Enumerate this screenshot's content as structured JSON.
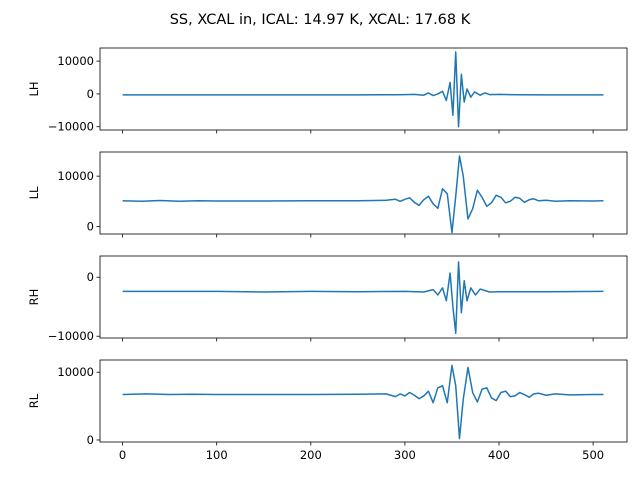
{
  "figure": {
    "title": "SS, XCAL in, ICAL: 14.97 K, XCAL: 17.68 K"
  },
  "colors": {
    "line": "#1f77b4",
    "axes": "#000000",
    "background": "#ffffff"
  },
  "chart_data": [
    {
      "type": "line",
      "ylabel": "LH",
      "xlim": [
        -24,
        536
      ],
      "ylim": [
        -11000,
        14000
      ],
      "xticks": [
        0,
        100,
        200,
        300,
        400,
        500
      ],
      "xtick_labels": [
        "",
        "",
        "",
        "",
        "",
        ""
      ],
      "yticks": [
        -10000,
        0,
        10000
      ],
      "ytick_labels": [
        "−10000",
        "0",
        "10000"
      ],
      "series": [
        {
          "x": [
            0,
            50,
            100,
            150,
            200,
            250,
            290,
            300,
            310,
            320,
            325,
            330,
            335,
            340,
            344,
            348,
            351,
            354,
            357,
            360,
            363,
            366,
            370,
            374,
            380,
            385,
            390,
            400,
            420,
            450,
            500,
            511
          ],
          "values": [
            -300,
            -300,
            -300,
            -300,
            -300,
            -300,
            -250,
            -200,
            -150,
            -400,
            300,
            -500,
            0,
            800,
            -2000,
            3500,
            -6500,
            12800,
            -10000,
            6000,
            -2500,
            1500,
            -1000,
            600,
            -400,
            300,
            -200,
            -150,
            -250,
            -300,
            -300,
            -300
          ]
        }
      ]
    },
    {
      "type": "line",
      "ylabel": "LL",
      "xlim": [
        -24,
        536
      ],
      "ylim": [
        -1500,
        14800
      ],
      "xticks": [
        0,
        100,
        200,
        300,
        400,
        500
      ],
      "xtick_labels": [
        "",
        "",
        "",
        "",
        "",
        ""
      ],
      "yticks": [
        0,
        10000
      ],
      "ytick_labels": [
        "0",
        "10000"
      ],
      "series": [
        {
          "x": [
            0,
            20,
            40,
            60,
            80,
            100,
            150,
            200,
            250,
            280,
            290,
            295,
            300,
            305,
            310,
            315,
            320,
            325,
            330,
            335,
            340,
            345,
            350,
            354,
            358,
            362,
            367,
            372,
            377,
            382,
            387,
            392,
            397,
            402,
            407,
            412,
            417,
            422,
            427,
            432,
            437,
            442,
            450,
            460,
            475,
            500,
            511
          ],
          "values": [
            5100,
            5000,
            5150,
            5000,
            5100,
            5050,
            5050,
            5100,
            5100,
            5200,
            5400,
            5000,
            5400,
            5700,
            4800,
            4200,
            5300,
            6000,
            4500,
            3600,
            7500,
            6500,
            -1200,
            6000,
            14000,
            10000,
            1500,
            3500,
            7200,
            5800,
            4000,
            4700,
            6200,
            5800,
            4700,
            5000,
            5800,
            5600,
            4800,
            5300,
            5500,
            5100,
            5200,
            5000,
            5100,
            5050,
            5100
          ]
        }
      ]
    },
    {
      "type": "line",
      "ylabel": "RH",
      "xlim": [
        -24,
        536
      ],
      "ylim": [
        -10300,
        3600
      ],
      "xticks": [
        0,
        100,
        200,
        300,
        400,
        500
      ],
      "xtick_labels": [
        "",
        "",
        "",
        "",
        "",
        ""
      ],
      "yticks": [
        -10000,
        0
      ],
      "ytick_labels": [
        "−10000",
        "0"
      ],
      "series": [
        {
          "x": [
            0,
            50,
            100,
            150,
            200,
            250,
            300,
            320,
            330,
            335,
            340,
            344,
            348,
            351,
            354,
            357,
            360,
            363,
            366,
            370,
            375,
            380,
            390,
            400,
            450,
            511
          ],
          "values": [
            -2400,
            -2400,
            -2400,
            -2500,
            -2400,
            -2450,
            -2400,
            -2500,
            -2100,
            -3000,
            -1800,
            -4000,
            700,
            -5000,
            -9500,
            2600,
            -6000,
            -600,
            -4000,
            -1800,
            -3000,
            -2000,
            -2500,
            -2450,
            -2450,
            -2400
          ]
        }
      ]
    },
    {
      "type": "line",
      "ylabel": "RL",
      "xlim": [
        -24,
        536
      ],
      "ylim": [
        -300,
        11800
      ],
      "xticks": [
        0,
        100,
        200,
        300,
        400,
        500
      ],
      "xtick_labels": [
        "0",
        "100",
        "200",
        "300",
        "400",
        "500"
      ],
      "yticks": [
        0,
        10000
      ],
      "ytick_labels": [
        "0",
        "10000"
      ],
      "series": [
        {
          "x": [
            0,
            25,
            50,
            75,
            100,
            150,
            200,
            250,
            280,
            290,
            295,
            300,
            305,
            310,
            315,
            320,
            325,
            330,
            335,
            340,
            345,
            350,
            354,
            358,
            362,
            367,
            372,
            377,
            382,
            387,
            392,
            397,
            402,
            407,
            412,
            417,
            422,
            427,
            432,
            437,
            442,
            450,
            460,
            475,
            500,
            511
          ],
          "values": [
            6700,
            6800,
            6700,
            6750,
            6700,
            6700,
            6700,
            6750,
            6800,
            6400,
            6800,
            6500,
            7000,
            6600,
            6100,
            6500,
            7200,
            5500,
            7700,
            8000,
            5500,
            11000,
            8000,
            200,
            6000,
            10700,
            7000,
            5600,
            7500,
            7700,
            6200,
            5800,
            7000,
            7200,
            6400,
            6500,
            7000,
            6700,
            6300,
            6800,
            6900,
            6600,
            6800,
            6650,
            6700,
            6700
          ]
        }
      ]
    }
  ]
}
